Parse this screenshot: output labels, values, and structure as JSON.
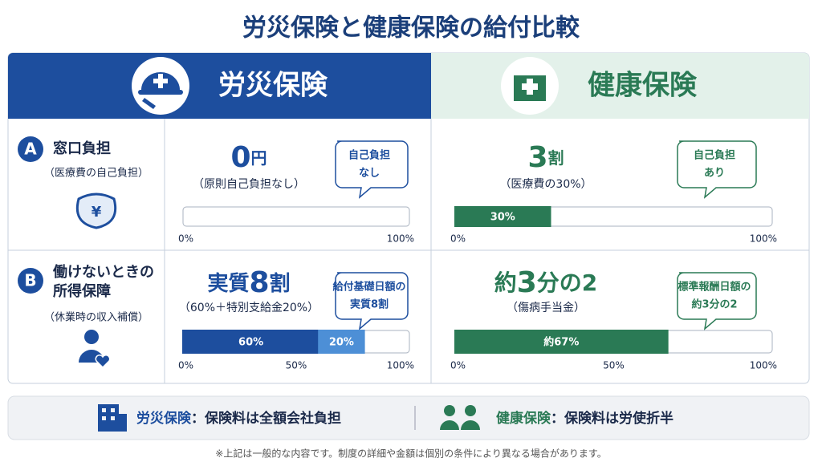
{
  "title": "労災保険と健康保険の給付比較",
  "columns": [
    {
      "name": "労災保険",
      "color": "#1d4e9e"
    },
    {
      "name": "健康保険",
      "color": "#2a7a55"
    }
  ],
  "rows": [
    {
      "badge": "A",
      "label": [
        "窓口負担"
      ],
      "sub": "（医療費の自己負担）",
      "cells": [
        {
          "main": {
            "number": "0",
            "unit": "円"
          },
          "sub": "（原則自己負担なし）",
          "bubble": [
            "自己負担",
            "なし"
          ],
          "bar": {
            "lim": [
              0,
              100
            ],
            "segments": [
              {
                "value": 0,
                "color": "#1d4e9e"
              }
            ],
            "ticks": [
              {
                "value": 0,
                "label": "0%"
              },
              {
                "value": 100,
                "label": "100%"
              }
            ]
          }
        },
        {
          "main": {
            "number": "3",
            "unit": "割"
          },
          "sub": "（医療費の30%）",
          "bubble": [
            "自己負担",
            "あり"
          ],
          "bar": {
            "lim": [
              0,
              100
            ],
            "segments": [
              {
                "value": 30,
                "label": "30%",
                "color": "#2a7a55"
              }
            ],
            "ticks": [
              {
                "value": 0,
                "label": "0%"
              },
              {
                "value": 100,
                "label": "100%"
              }
            ]
          }
        }
      ]
    },
    {
      "badge": "B",
      "label": [
        "働けないときの",
        "所得保障"
      ],
      "sub": "（休業時の収入補償）",
      "cells": [
        {
          "main": {
            "prefix": "実質",
            "number": "8",
            "unit": "割"
          },
          "sub": "（60%＋特別支給金20%）",
          "bubble": [
            "給付基礎日額の",
            "実質8割"
          ],
          "bar": {
            "lim": [
              0,
              100
            ],
            "segments": [
              {
                "value": 60,
                "label": "60%",
                "color": "#1d4e9e"
              },
              {
                "value": 20,
                "label": "20%",
                "color": "#4d8fd6"
              }
            ],
            "ticks": [
              {
                "value": 0,
                "label": "0%"
              },
              {
                "value": 50,
                "label": "50%"
              },
              {
                "value": 100,
                "label": "100%"
              }
            ]
          }
        },
        {
          "main": {
            "prefix": "約",
            "number": "3",
            "unit": "分の2"
          },
          "sub": "（傷病手当金）",
          "bubble": [
            "標準報酬日額の",
            "約3分の2"
          ],
          "bar": {
            "lim": [
              0,
              100
            ],
            "segments": [
              {
                "value": 67,
                "label": "約67%",
                "color": "#2a7a55"
              }
            ],
            "ticks": [
              {
                "value": 0,
                "label": "0%"
              },
              {
                "value": 50,
                "label": "50%"
              },
              {
                "value": 100,
                "label": "100%"
              }
            ]
          }
        }
      ]
    }
  ],
  "footer": [
    {
      "name": "労災保険",
      "text": "：保険料は全額会社負担"
    },
    {
      "name": "健康保険",
      "text": "：保険料は労使折半"
    }
  ],
  "note": "※上記は一般的な内容です。制度の詳細や金額は個別の条件により異なる場合があります。"
}
